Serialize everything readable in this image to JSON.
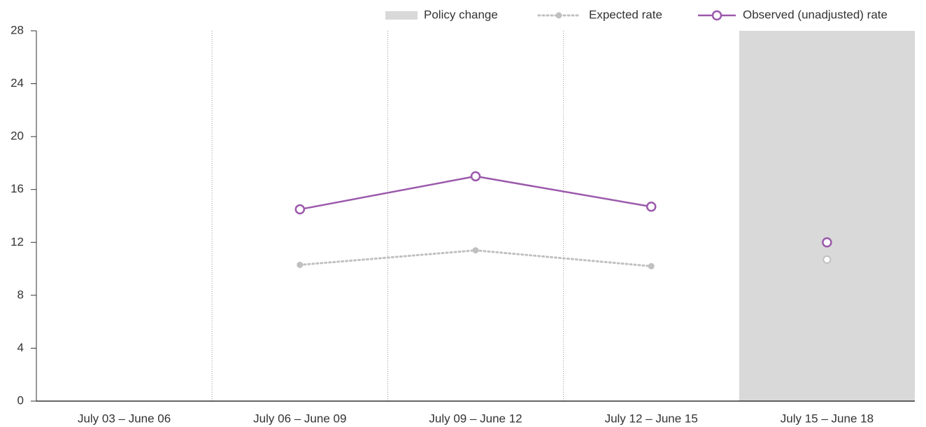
{
  "chart_data": {
    "type": "line",
    "categories": [
      "July 03 – June 06",
      "July 06 – June 09",
      "July 09 – June 12",
      "July 12 – June 15",
      "July 15 – June 18"
    ],
    "series": [
      {
        "name": "Expected rate",
        "color": "#c0c0c0",
        "style": "dotted",
        "values": [
          null,
          10.3,
          11.4,
          10.2,
          10.7
        ]
      },
      {
        "name": "Observed (unadjusted) rate",
        "color": "#9b59ab",
        "style": "solid",
        "values": [
          null,
          14.5,
          17.0,
          14.7,
          12.0
        ]
      }
    ],
    "policy_change": {
      "name": "Policy change",
      "color": "#d9d9d9",
      "category_index": 4
    },
    "ylim": [
      0,
      28
    ],
    "yticks": [
      0,
      4,
      8,
      12,
      16,
      20,
      24,
      28
    ],
    "legend": "top-right"
  }
}
